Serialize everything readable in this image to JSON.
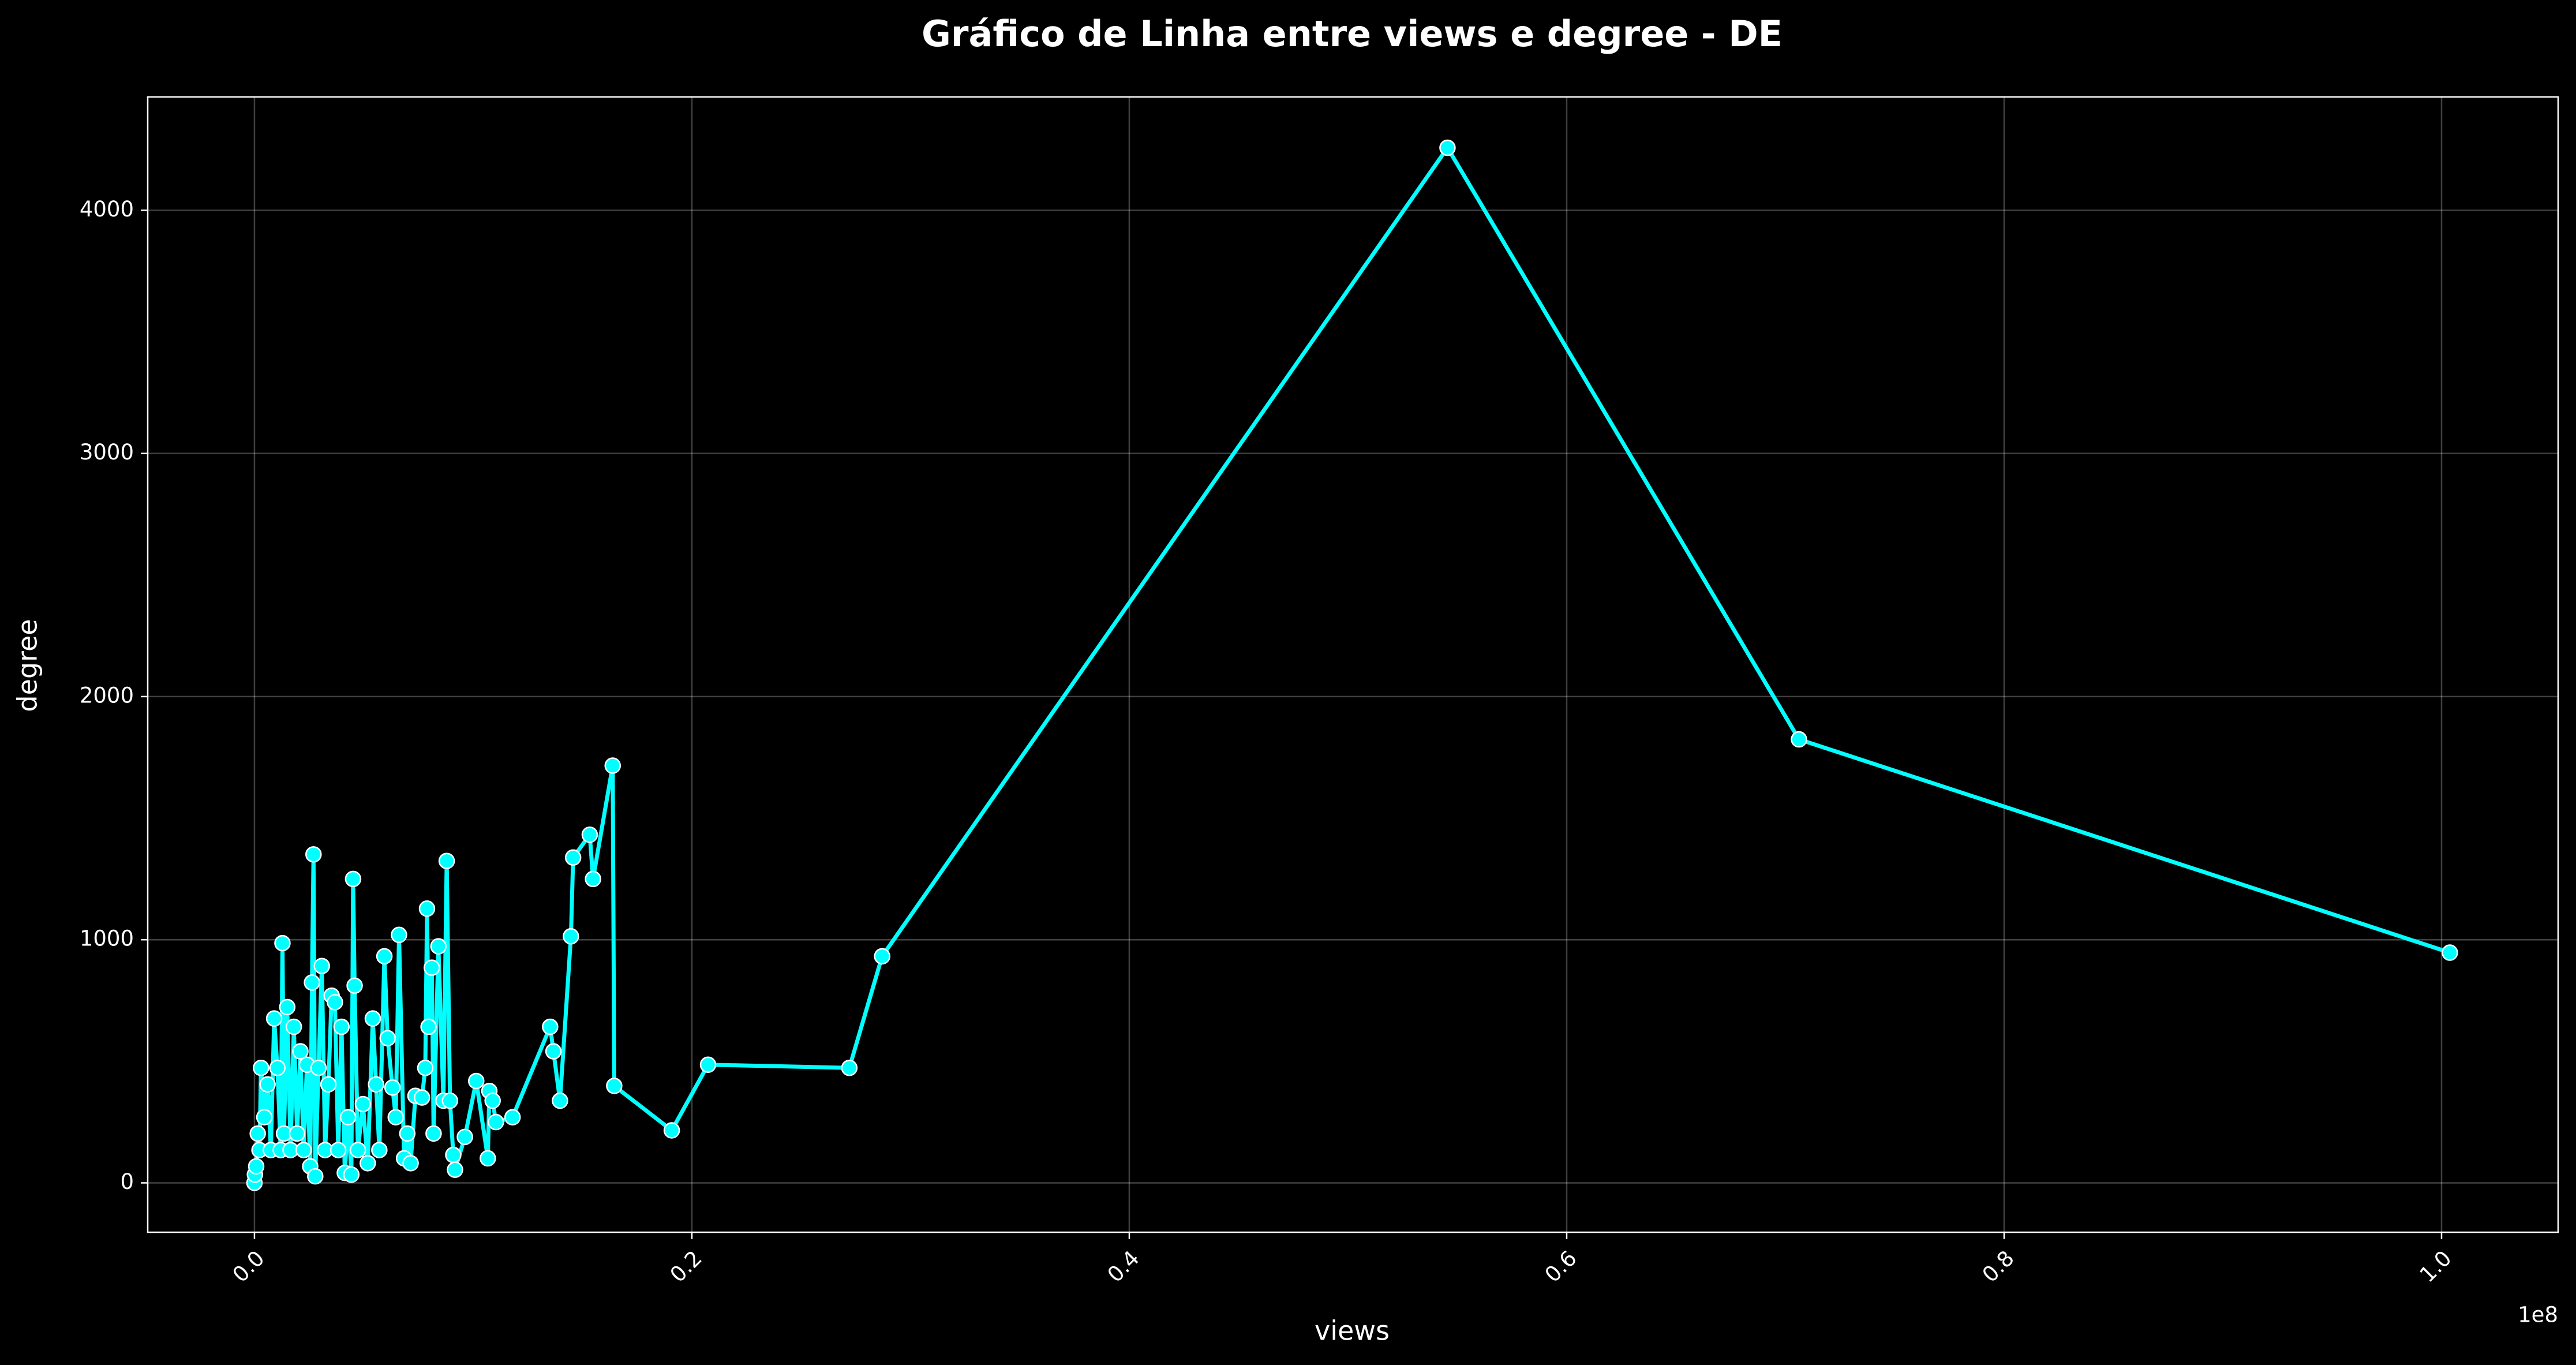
{
  "chart_data": {
    "type": "line",
    "title": "Gráfico de Linha entre views e degree - DE",
    "x_label": "views",
    "y_label": "degree",
    "x_offset_label": "1e8",
    "x": [
      0,
      20000,
      80000,
      150000,
      230000,
      300000,
      450000,
      600000,
      750000,
      900000,
      1050000,
      1200000,
      1280000,
      1350000,
      1500000,
      1650000,
      1800000,
      1950000,
      2100000,
      2250000,
      2400000,
      2550000,
      2630000,
      2700000,
      2780000,
      2930000,
      3080000,
      3230000,
      3380000,
      3530000,
      3680000,
      3830000,
      3980000,
      4130000,
      4280000,
      4430000,
      4510000,
      4580000,
      4730000,
      4960000,
      5180000,
      5410000,
      5560000,
      5710000,
      5940000,
      6090000,
      6310000,
      6460000,
      6610000,
      6840000,
      6990000,
      7140000,
      7360000,
      7660000,
      7810000,
      7890000,
      7960000,
      8110000,
      8190000,
      8410000,
      8640000,
      8790000,
      8940000,
      9090000,
      9170000,
      9620000,
      10140000,
      10670000,
      10740000,
      10890000,
      11040000,
      11800000,
      13520000,
      13670000,
      13970000,
      14470000,
      14570000,
      15330000,
      15480000,
      16380000,
      16450000,
      19080000,
      20740000,
      27200000,
      28700000,
      54550000,
      70620000,
      100380000
    ],
    "series": [
      {
        "name": "degree",
        "color": "#00ffff",
        "values": [
          0,
          34,
          68,
          203,
          135,
          473,
          270,
          405,
          135,
          676,
          473,
          135,
          986,
          203,
          723,
          135,
          642,
          203,
          541,
          135,
          486,
          68,
          824,
          1351,
          27,
          473,
          892,
          135,
          405,
          770,
          743,
          135,
          642,
          41,
          270,
          34,
          1250,
          811,
          135,
          324,
          81,
          676,
          405,
          135,
          932,
          595,
          392,
          270,
          1020,
          101,
          203,
          81,
          358,
          351,
          473,
          1128,
          642,
          885,
          203,
          973,
          338,
          1324,
          338,
          115,
          54,
          189,
          419,
          101,
          378,
          338,
          250,
          270,
          642,
          541,
          338,
          1014,
          1338,
          1432,
          1250,
          1716,
          399,
          216,
          486,
          473,
          932,
          4257,
          1824,
          947
        ]
      }
    ],
    "xlim": [
      -4880000,
      105330000
    ],
    "ylim": [
      -203,
      4466
    ],
    "xticks": [
      {
        "value": 0,
        "label": "0.0"
      },
      {
        "value": 20000000,
        "label": "0.2"
      },
      {
        "value": 40000000,
        "label": "0.4"
      },
      {
        "value": 60000000,
        "label": "0.6"
      },
      {
        "value": 80000000,
        "label": "0.8"
      },
      {
        "value": 100000000,
        "label": "1.0"
      }
    ],
    "yticks": [
      0,
      1000,
      2000,
      3000,
      4000
    ],
    "grid": true
  }
}
